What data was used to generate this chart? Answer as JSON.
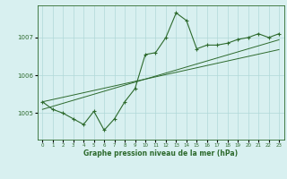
{
  "x": [
    0,
    1,
    2,
    3,
    4,
    5,
    6,
    7,
    8,
    9,
    10,
    11,
    12,
    13,
    14,
    15,
    16,
    17,
    18,
    19,
    20,
    21,
    22,
    23
  ],
  "pressure_main": [
    1005.3,
    1005.1,
    1005.0,
    1004.85,
    1004.7,
    1005.05,
    1004.55,
    1004.85,
    1005.3,
    1005.65,
    1006.55,
    1006.6,
    1007.0,
    1007.65,
    1007.45,
    1006.7,
    1006.8,
    1006.8,
    1006.85,
    1006.95,
    1007.0,
    1007.1,
    1007.0,
    1007.1
  ],
  "trend_line1": [
    1005.1,
    1005.18,
    1005.26,
    1005.34,
    1005.42,
    1005.5,
    1005.58,
    1005.66,
    1005.74,
    1005.82,
    1005.9,
    1005.98,
    1006.06,
    1006.14,
    1006.22,
    1006.3,
    1006.38,
    1006.46,
    1006.54,
    1006.62,
    1006.7,
    1006.78,
    1006.86,
    1006.94
  ],
  "trend_line2": [
    1005.3,
    1005.36,
    1005.42,
    1005.48,
    1005.54,
    1005.6,
    1005.66,
    1005.72,
    1005.78,
    1005.84,
    1005.9,
    1005.96,
    1006.02,
    1006.08,
    1006.14,
    1006.2,
    1006.26,
    1006.32,
    1006.38,
    1006.44,
    1006.5,
    1006.56,
    1006.62,
    1006.68
  ],
  "line_color": "#2d6a2d",
  "bg_color": "#d8f0f0",
  "grid_color": "#b0d8d8",
  "axis_color": "#2d6a2d",
  "ylabel_ticks": [
    1005,
    1006,
    1007
  ],
  "xlabel": "Graphe pression niveau de la mer (hPa)",
  "ylim": [
    1004.3,
    1007.85
  ],
  "xlim": [
    -0.5,
    23.5
  ],
  "figsize": [
    3.2,
    2.0
  ],
  "dpi": 100
}
